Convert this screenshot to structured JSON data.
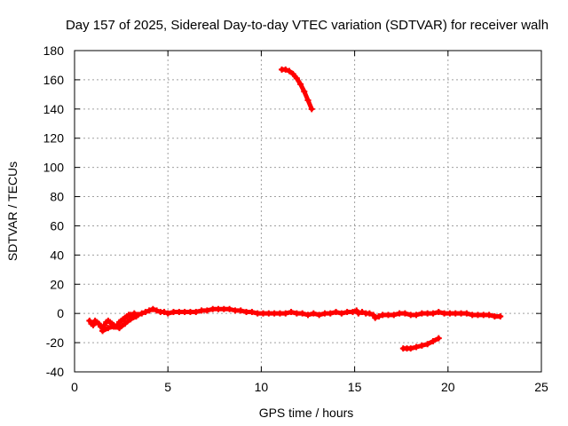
{
  "chart_data": {
    "type": "scatter",
    "title": "Day 157 of 2025, Sidereal Day-to-day VTEC variation (SDTVAR) for receiver walh",
    "xlabel": "GPS time / hours",
    "ylabel": "SDTVAR / TECUs",
    "xlim": [
      0,
      25
    ],
    "ylim": [
      -40,
      180
    ],
    "xticks": [
      0,
      5,
      10,
      15,
      20,
      25
    ],
    "yticks": [
      -40,
      -20,
      0,
      20,
      40,
      60,
      80,
      100,
      120,
      140,
      160,
      180
    ],
    "grid": true,
    "series_color": "#ff0000",
    "series": [
      {
        "name": "main",
        "points": [
          [
            0.8,
            -5
          ],
          [
            0.9,
            -7
          ],
          [
            1.0,
            -8
          ],
          [
            1.1,
            -5
          ],
          [
            1.2,
            -6
          ],
          [
            1.3,
            -7
          ],
          [
            1.4,
            -9
          ],
          [
            1.5,
            -10
          ],
          [
            1.6,
            -8
          ],
          [
            1.7,
            -6
          ],
          [
            1.8,
            -5
          ],
          [
            1.9,
            -6
          ],
          [
            2.0,
            -7
          ],
          [
            2.1,
            -8
          ],
          [
            2.2,
            -9
          ],
          [
            2.3,
            -8
          ],
          [
            2.4,
            -6
          ],
          [
            2.5,
            -5
          ],
          [
            2.6,
            -4
          ],
          [
            2.7,
            -3
          ],
          [
            2.8,
            -2
          ],
          [
            2.9,
            -1
          ],
          [
            3.0,
            -1
          ],
          [
            3.2,
            0
          ],
          [
            3.4,
            -1
          ],
          [
            3.6,
            0
          ],
          [
            3.8,
            1
          ],
          [
            4.0,
            2
          ],
          [
            4.2,
            3
          ],
          [
            4.4,
            2
          ],
          [
            4.6,
            1
          ],
          [
            4.8,
            1
          ],
          [
            5.0,
            0
          ],
          [
            5.3,
            1
          ],
          [
            5.6,
            1
          ],
          [
            5.9,
            1
          ],
          [
            6.2,
            1
          ],
          [
            6.5,
            1
          ],
          [
            6.8,
            2
          ],
          [
            7.1,
            2
          ],
          [
            7.4,
            3
          ],
          [
            7.7,
            3
          ],
          [
            8.0,
            3
          ],
          [
            8.3,
            3
          ],
          [
            8.6,
            2
          ],
          [
            8.9,
            2
          ],
          [
            9.2,
            1
          ],
          [
            9.5,
            1
          ],
          [
            9.8,
            0
          ],
          [
            10.1,
            0
          ],
          [
            10.4,
            0
          ],
          [
            10.7,
            0
          ],
          [
            11.0,
            0
          ],
          [
            11.3,
            0
          ],
          [
            11.6,
            1
          ],
          [
            11.9,
            0
          ],
          [
            12.2,
            0
          ],
          [
            12.5,
            -1
          ],
          [
            12.8,
            0
          ],
          [
            13.1,
            -1
          ],
          [
            13.4,
            0
          ],
          [
            13.7,
            0
          ],
          [
            14.0,
            1
          ],
          [
            14.3,
            0
          ],
          [
            14.6,
            1
          ],
          [
            14.9,
            1
          ],
          [
            15.1,
            2
          ],
          [
            15.2,
            0
          ],
          [
            15.4,
            1
          ],
          [
            15.6,
            0
          ],
          [
            15.8,
            0
          ],
          [
            16.0,
            -1
          ],
          [
            16.1,
            -3
          ],
          [
            16.3,
            -2
          ],
          [
            16.5,
            -1
          ],
          [
            16.8,
            -1
          ],
          [
            17.1,
            -1
          ],
          [
            17.4,
            0
          ],
          [
            17.7,
            0
          ],
          [
            18.0,
            -1
          ],
          [
            18.3,
            -1
          ],
          [
            18.6,
            0
          ],
          [
            18.9,
            0
          ],
          [
            19.2,
            0
          ],
          [
            19.5,
            1
          ],
          [
            19.8,
            0
          ],
          [
            20.1,
            0
          ],
          [
            20.4,
            0
          ],
          [
            20.7,
            0
          ],
          [
            21.0,
            0
          ],
          [
            21.3,
            -1
          ],
          [
            21.6,
            -1
          ],
          [
            21.9,
            -1
          ],
          [
            22.2,
            -1
          ],
          [
            22.5,
            -2
          ],
          [
            22.8,
            -2
          ]
        ]
      },
      {
        "name": "lower-branch",
        "points": [
          [
            1.5,
            -12
          ],
          [
            1.8,
            -10
          ],
          [
            2.1,
            -9
          ],
          [
            2.4,
            -10
          ],
          [
            2.7,
            -7
          ],
          [
            3.0,
            -4
          ],
          [
            3.3,
            -2
          ]
        ]
      },
      {
        "name": "low-arc",
        "points": [
          [
            17.6,
            -24
          ],
          [
            17.8,
            -24
          ],
          [
            18.0,
            -24
          ],
          [
            18.3,
            -23
          ],
          [
            18.6,
            -22
          ],
          [
            18.9,
            -21
          ],
          [
            19.2,
            -19
          ],
          [
            19.5,
            -17
          ]
        ]
      },
      {
        "name": "high-arc",
        "points": [
          [
            11.1,
            167
          ],
          [
            11.3,
            167
          ],
          [
            11.5,
            166
          ],
          [
            11.7,
            164
          ],
          [
            11.9,
            161
          ],
          [
            12.1,
            157
          ],
          [
            12.3,
            152
          ],
          [
            12.5,
            146
          ],
          [
            12.7,
            140
          ]
        ]
      }
    ]
  }
}
